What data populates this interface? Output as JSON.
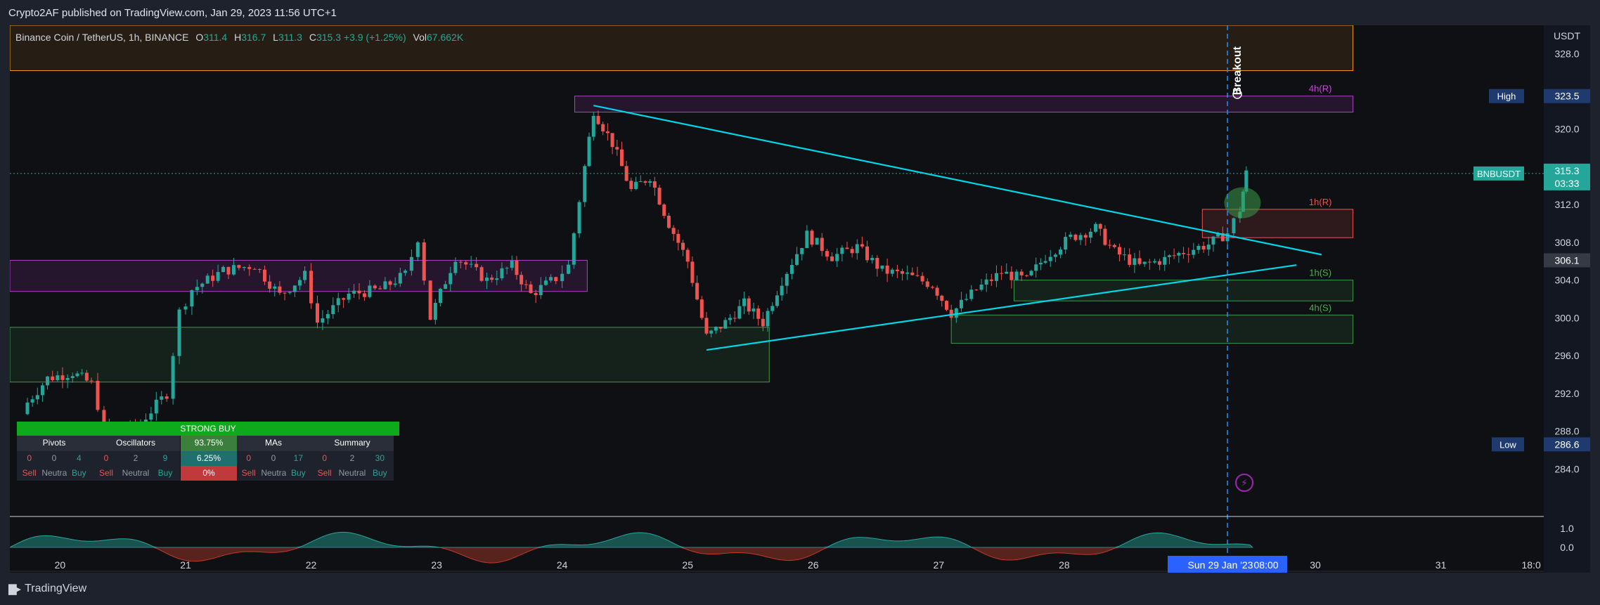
{
  "header": {
    "published": "Crypto2AF published on TradingView.com, Jan 29, 2023 11:56 UTC+1"
  },
  "footer": {
    "brand": "TradingView"
  },
  "legend": {
    "symbol": "Binance Coin / TetherUS, 1h, BINANCE",
    "o_label": "O",
    "o_value": "311.4",
    "h_label": "H",
    "h_value": "316.7",
    "l_label": "L",
    "l_value": "311.3",
    "c_label": "C",
    "c_value": "315.3",
    "change": "+3.9 (+1.25%)",
    "vol_label": "Vol",
    "vol_value": "67.662K"
  },
  "colors": {
    "up": "#26a69a",
    "down": "#ef5350",
    "trendline": "#00d7e6",
    "resistance": "#b040c8",
    "support_green": "#3c9a4a",
    "orange": "#f79a1a"
  },
  "chart_data": {
    "type": "line",
    "symbol": "BNBUSDT",
    "timeframe": "1h",
    "x": [
      "20",
      "21",
      "22",
      "23",
      "24",
      "25",
      "26",
      "27",
      "28",
      "30",
      "31",
      "18:0"
    ],
    "y_axis": {
      "unit": "USDT",
      "ylim": [
        280.0,
        331.0
      ],
      "ticks": [
        "328.0",
        "320.0",
        "312.0",
        "308.0",
        "304.0",
        "300.0",
        "296.0",
        "292.0",
        "288.0",
        "284.0"
      ]
    },
    "price_series": [
      {
        "t": 19.7,
        "close": 290.4
      },
      {
        "t": 19.9,
        "close": 293.6
      },
      {
        "t": 20.1,
        "close": 294.2
      },
      {
        "t": 20.25,
        "close": 293.0
      },
      {
        "t": 20.35,
        "close": 288.5
      },
      {
        "t": 20.6,
        "close": 288.3
      },
      {
        "t": 20.85,
        "close": 292.0
      },
      {
        "t": 20.95,
        "close": 300.6
      },
      {
        "t": 21.05,
        "close": 303.0
      },
      {
        "t": 21.3,
        "close": 305.0
      },
      {
        "t": 21.55,
        "close": 305.6
      },
      {
        "t": 21.75,
        "close": 302.4
      },
      {
        "t": 21.95,
        "close": 304.5
      },
      {
        "t": 22.05,
        "close": 299.5
      },
      {
        "t": 22.3,
        "close": 302.5
      },
      {
        "t": 22.55,
        "close": 303.0
      },
      {
        "t": 22.75,
        "close": 304.6
      },
      {
        "t": 22.85,
        "close": 308.5
      },
      {
        "t": 22.95,
        "close": 300.0
      },
      {
        "t": 23.15,
        "close": 306.5
      },
      {
        "t": 23.4,
        "close": 304.0
      },
      {
        "t": 23.6,
        "close": 305.5
      },
      {
        "t": 23.75,
        "close": 302.5
      },
      {
        "t": 23.95,
        "close": 304.2
      },
      {
        "t": 24.05,
        "close": 305.5
      },
      {
        "t": 24.18,
        "close": 316.0
      },
      {
        "t": 24.25,
        "close": 322.0
      },
      {
        "t": 24.4,
        "close": 318.5
      },
      {
        "t": 24.55,
        "close": 313.5
      },
      {
        "t": 24.7,
        "close": 315.0
      },
      {
        "t": 24.85,
        "close": 310.0
      },
      {
        "t": 25.0,
        "close": 306.0
      },
      {
        "t": 25.15,
        "close": 298.0
      },
      {
        "t": 25.3,
        "close": 299.5
      },
      {
        "t": 25.45,
        "close": 301.5
      },
      {
        "t": 25.6,
        "close": 299.5
      },
      {
        "t": 25.75,
        "close": 304.0
      },
      {
        "t": 25.95,
        "close": 308.8
      },
      {
        "t": 26.15,
        "close": 306.5
      },
      {
        "t": 26.35,
        "close": 307.5
      },
      {
        "t": 26.55,
        "close": 305.0
      },
      {
        "t": 26.75,
        "close": 304.5
      },
      {
        "t": 26.95,
        "close": 303.5
      },
      {
        "t": 27.1,
        "close": 300.5
      },
      {
        "t": 27.3,
        "close": 303.0
      },
      {
        "t": 27.5,
        "close": 304.8
      },
      {
        "t": 27.7,
        "close": 304.0
      },
      {
        "t": 27.85,
        "close": 306.5
      },
      {
        "t": 28.05,
        "close": 308.5
      },
      {
        "t": 28.25,
        "close": 309.5
      },
      {
        "t": 28.4,
        "close": 307.0
      },
      {
        "t": 28.6,
        "close": 305.5
      },
      {
        "t": 28.8,
        "close": 306.2
      },
      {
        "t": 28.95,
        "close": 307.0
      },
      {
        "t": 29.15,
        "close": 307.8
      },
      {
        "t": 29.3,
        "close": 309.0
      },
      {
        "t": 29.4,
        "close": 311.5
      },
      {
        "t": 29.45,
        "close": 315.3
      }
    ],
    "zones": [
      {
        "label": "",
        "t0": 19.6,
        "t1": 30.3,
        "y0": 326.2,
        "y1": 331.0,
        "kind": "orange"
      },
      {
        "label": "4h(R)",
        "t0": 24.1,
        "t1": 30.3,
        "y0": 321.8,
        "y1": 323.5,
        "kind": "resistance"
      },
      {
        "label": "1h(R)",
        "t0": 29.1,
        "t1": 30.3,
        "y0": 308.5,
        "y1": 311.5,
        "kind": "supply"
      },
      {
        "label": "1h(S)",
        "t0": 27.6,
        "t1": 30.3,
        "y0": 301.8,
        "y1": 304.0,
        "kind": "support"
      },
      {
        "label": "4h(S)",
        "t0": 27.1,
        "t1": 30.3,
        "y0": 297.3,
        "y1": 300.3,
        "kind": "support"
      },
      {
        "label": "",
        "t0": 19.6,
        "t1": 24.2,
        "y0": 302.8,
        "y1": 306.1,
        "kind": "resistance"
      },
      {
        "label": "",
        "t0": 19.6,
        "t1": 25.65,
        "y0": 293.2,
        "y1": 299.0,
        "kind": "support"
      }
    ],
    "trendlines": [
      {
        "t0": 24.25,
        "y0": 322.5,
        "t1": 30.05,
        "y1": 306.7
      },
      {
        "t0": 25.15,
        "y0": 296.6,
        "t1": 29.85,
        "y1": 305.6
      }
    ],
    "labels": {
      "high_label": "High",
      "high_value": "323.5",
      "symbol_tag": "BNBUSDT",
      "price_tag": "315.3",
      "countdown": "03:33",
      "level_tag": "306.1",
      "low_label": "Low",
      "low_value": "286.6",
      "breakout_text": "Breakout",
      "crosshair_date": "Sun 29 Jan '23",
      "crosshair_time": "08:00",
      "osc_ticks": [
        "1.0",
        "0.0"
      ]
    }
  },
  "tech_table": {
    "title": "STRONG BUY",
    "groups": [
      {
        "name": "Pivots",
        "vals": [
          "0",
          "0",
          "4"
        ]
      },
      {
        "name": "Oscillators",
        "vals": [
          "0",
          "2",
          "9"
        ]
      },
      {
        "name": "MAs",
        "vals": [
          "0",
          "0",
          "17"
        ]
      },
      {
        "name": "Summary",
        "vals": [
          "0",
          "2",
          "30"
        ]
      }
    ],
    "sell_label": "Sell",
    "neutral_label": "Neutral",
    "buy_label": "Buy",
    "percents": [
      "93.75%",
      "6.25%",
      "0%"
    ]
  }
}
